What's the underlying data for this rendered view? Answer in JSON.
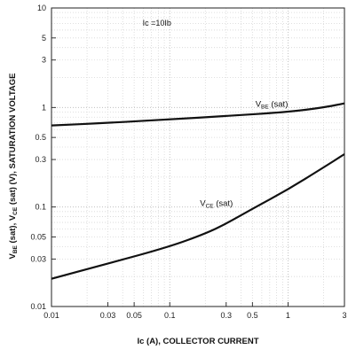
{
  "chart_data": {
    "type": "line",
    "xlabel": "Ic (A), COLLECTOR CURRENT",
    "ylabel_parts": [
      {
        "t": "V",
        "sub": false
      },
      {
        "t": "BE",
        "sub": true
      },
      {
        "t": " (sat), V",
        "sub": false
      },
      {
        "t": "CE",
        "sub": true
      },
      {
        "t": " (sat) (V), SATURATION VOLTAGE",
        "sub": false
      }
    ],
    "xscale": "log",
    "yscale": "log",
    "xlim": [
      0.01,
      3
    ],
    "ylim": [
      0.01,
      10
    ],
    "grid": true,
    "x_ticks": [
      {
        "v": 0.01,
        "label": "0.01"
      },
      {
        "v": 0.03,
        "label": "0.03"
      },
      {
        "v": 0.05,
        "label": "0.05"
      },
      {
        "v": 0.1,
        "label": "0.1"
      },
      {
        "v": 0.3,
        "label": "0.3"
      },
      {
        "v": 0.5,
        "label": "0.5"
      },
      {
        "v": 1,
        "label": "1"
      },
      {
        "v": 3,
        "label": "3"
      }
    ],
    "y_ticks": [
      {
        "v": 10,
        "label": "10"
      },
      {
        "v": 5,
        "label": "5"
      },
      {
        "v": 3,
        "label": "3"
      },
      {
        "v": 1,
        "label": "1"
      },
      {
        "v": 0.5,
        "label": "0.5"
      },
      {
        "v": 0.3,
        "label": "0.3"
      },
      {
        "v": 0.1,
        "label": "0.1"
      },
      {
        "v": 0.05,
        "label": "0.05"
      },
      {
        "v": 0.03,
        "label": "0.03"
      },
      {
        "v": 0.01,
        "label": "0.01"
      }
    ],
    "annotation": "Ic =10Ib",
    "series": [
      {
        "name": "VBE (sat)",
        "label_main": "V",
        "label_sub": "BE",
        "label_rest": " (sat)",
        "x": [
          0.01,
          0.03,
          0.1,
          0.3,
          1,
          2,
          3
        ],
        "y": [
          0.66,
          0.7,
          0.76,
          0.82,
          0.9,
          1.0,
          1.1
        ]
      },
      {
        "name": "VCE (sat)",
        "label_main": "V",
        "label_sub": "CE",
        "label_rest": " (sat)",
        "x": [
          0.01,
          0.03,
          0.1,
          0.2,
          0.3,
          0.5,
          1,
          2,
          3
        ],
        "y": [
          0.019,
          0.027,
          0.04,
          0.054,
          0.068,
          0.096,
          0.15,
          0.25,
          0.34
        ]
      }
    ]
  }
}
